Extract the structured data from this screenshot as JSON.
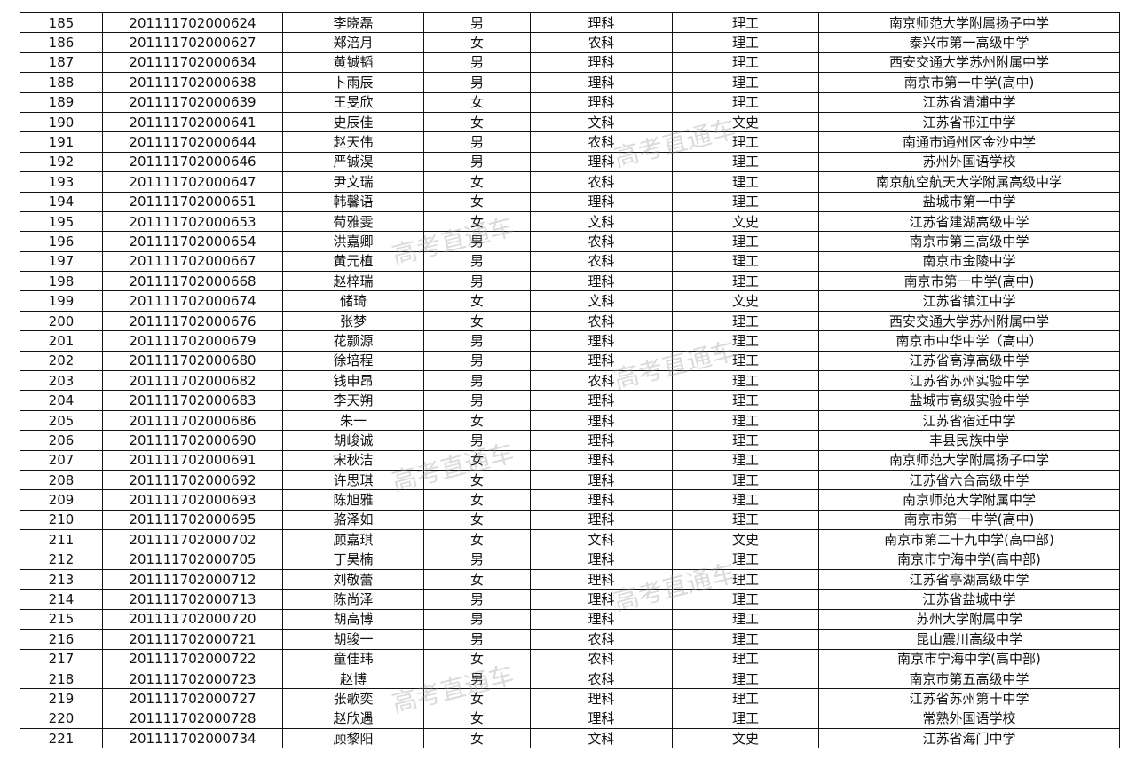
{
  "watermark": "高考直通车",
  "rows": [
    [
      "185",
      "201111702000624",
      "李晓磊",
      "男",
      "理科",
      "理工",
      "南京师范大学附属扬子中学"
    ],
    [
      "186",
      "201111702000627",
      "郑涪月",
      "女",
      "农科",
      "理工",
      "泰兴市第一高级中学"
    ],
    [
      "187",
      "201111702000634",
      "黄铖韬",
      "男",
      "理科",
      "理工",
      "西安交通大学苏州附属中学"
    ],
    [
      "188",
      "201111702000638",
      "卜雨辰",
      "男",
      "理科",
      "理工",
      "南京市第一中学(高中)"
    ],
    [
      "189",
      "201111702000639",
      "王旻欣",
      "女",
      "理科",
      "理工",
      "江苏省清浦中学"
    ],
    [
      "190",
      "201111702000641",
      "史辰佳",
      "女",
      "文科",
      "文史",
      "江苏省邗江中学"
    ],
    [
      "191",
      "201111702000644",
      "赵天伟",
      "男",
      "农科",
      "理工",
      "南通市通州区金沙中学"
    ],
    [
      "192",
      "201111702000646",
      "严铖淏",
      "男",
      "理科",
      "理工",
      "苏州外国语学校"
    ],
    [
      "193",
      "201111702000647",
      "尹文瑞",
      "女",
      "农科",
      "理工",
      "南京航空航天大学附属高级中学"
    ],
    [
      "194",
      "201111702000651",
      "韩馨语",
      "女",
      "理科",
      "理工",
      "盐城市第一中学"
    ],
    [
      "195",
      "201111702000653",
      "荀雅雯",
      "女",
      "文科",
      "文史",
      "江苏省建湖高级中学"
    ],
    [
      "196",
      "201111702000654",
      "洪嘉卿",
      "男",
      "农科",
      "理工",
      "南京市第三高级中学"
    ],
    [
      "197",
      "201111702000667",
      "黄元植",
      "男",
      "农科",
      "理工",
      "南京市金陵中学"
    ],
    [
      "198",
      "201111702000668",
      "赵梓瑞",
      "男",
      "理科",
      "理工",
      "南京市第一中学(高中)"
    ],
    [
      "199",
      "201111702000674",
      "储琦",
      "女",
      "文科",
      "文史",
      "江苏省镇江中学"
    ],
    [
      "200",
      "201111702000676",
      "张梦",
      "女",
      "农科",
      "理工",
      "西安交通大学苏州附属中学"
    ],
    [
      "201",
      "201111702000679",
      "花颢源",
      "男",
      "理科",
      "理工",
      "南京市中华中学（高中）"
    ],
    [
      "202",
      "201111702000680",
      "徐培程",
      "男",
      "理科",
      "理工",
      "江苏省高淳高级中学"
    ],
    [
      "203",
      "201111702000682",
      "钱申昂",
      "男",
      "农科",
      "理工",
      "江苏省苏州实验中学"
    ],
    [
      "204",
      "201111702000683",
      "李天朔",
      "男",
      "理科",
      "理工",
      "盐城市高级实验中学"
    ],
    [
      "205",
      "201111702000686",
      "朱一",
      "女",
      "理科",
      "理工",
      "江苏省宿迁中学"
    ],
    [
      "206",
      "201111702000690",
      "胡峻诚",
      "男",
      "理科",
      "理工",
      "丰县民族中学"
    ],
    [
      "207",
      "201111702000691",
      "宋秋洁",
      "女",
      "理科",
      "理工",
      "南京师范大学附属扬子中学"
    ],
    [
      "208",
      "201111702000692",
      "许思琪",
      "女",
      "理科",
      "理工",
      "江苏省六合高级中学"
    ],
    [
      "209",
      "201111702000693",
      "陈旭雅",
      "女",
      "理科",
      "理工",
      "南京师范大学附属中学"
    ],
    [
      "210",
      "201111702000695",
      "骆泽如",
      "女",
      "理科",
      "理工",
      "南京市第一中学(高中)"
    ],
    [
      "211",
      "201111702000702",
      "顾嘉琪",
      "女",
      "文科",
      "文史",
      "南京市第二十九中学(高中部)"
    ],
    [
      "212",
      "201111702000705",
      "丁昊楠",
      "男",
      "理科",
      "理工",
      "南京市宁海中学(高中部)"
    ],
    [
      "213",
      "201111702000712",
      "刘敬蕾",
      "女",
      "理科",
      "理工",
      "江苏省亭湖高级中学"
    ],
    [
      "214",
      "201111702000713",
      "陈尚泽",
      "男",
      "理科",
      "理工",
      "江苏省盐城中学"
    ],
    [
      "215",
      "201111702000720",
      "胡高博",
      "男",
      "理科",
      "理工",
      "苏州大学附属中学"
    ],
    [
      "216",
      "201111702000721",
      "胡骏一",
      "男",
      "农科",
      "理工",
      "昆山震川高级中学"
    ],
    [
      "217",
      "201111702000722",
      "童佳玮",
      "女",
      "农科",
      "理工",
      "南京市宁海中学(高中部)"
    ],
    [
      "218",
      "201111702000723",
      "赵博",
      "男",
      "农科",
      "理工",
      "南京市第五高级中学"
    ],
    [
      "219",
      "201111702000727",
      "张歌奕",
      "女",
      "理科",
      "理工",
      "江苏省苏州第十中学"
    ],
    [
      "220",
      "201111702000728",
      "赵欣遇",
      "女",
      "理科",
      "理工",
      "常熟外国语学校"
    ],
    [
      "221",
      "201111702000734",
      "顾黎阳",
      "女",
      "文科",
      "文史",
      "江苏省海门中学"
    ]
  ]
}
